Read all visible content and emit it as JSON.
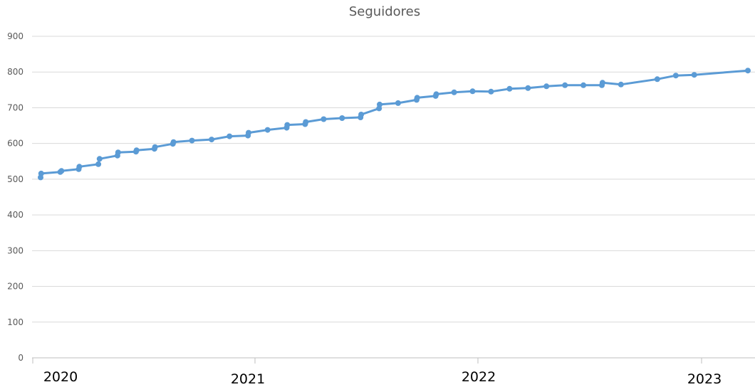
{
  "chart_data": {
    "type": "line",
    "title": "Seguidores",
    "xlabel": "",
    "ylabel": "",
    "ylim": [
      0,
      900
    ],
    "y_ticks": [
      "0",
      "100",
      "200",
      "300",
      "400",
      "500",
      "600",
      "700",
      "800",
      "900"
    ],
    "x_ticks": [
      "2020",
      "2021",
      "2022",
      "2023"
    ],
    "grid": true,
    "legend": "none",
    "colors": {
      "series": "#5b9bd5",
      "grid": "#d9d9d9",
      "text": "#595959"
    },
    "series": [
      {
        "values": [
          [
            "2019-12-30",
            505
          ],
          [
            "2019-12-31",
            516
          ],
          [
            "2020-02-01",
            520
          ],
          [
            "2020-02-03",
            523
          ],
          [
            "2020-03-03",
            528
          ],
          [
            "2020-03-04",
            535
          ],
          [
            "2020-04-05",
            542
          ],
          [
            "2020-04-07",
            557
          ],
          [
            "2020-05-07",
            566
          ],
          [
            "2020-05-08",
            575
          ],
          [
            "2020-06-07",
            577
          ],
          [
            "2020-06-08",
            581
          ],
          [
            "2020-07-08",
            585
          ],
          [
            "2020-07-09",
            590
          ],
          [
            "2020-08-08",
            599
          ],
          [
            "2020-08-09",
            604
          ],
          [
            "2020-09-09",
            608
          ],
          [
            "2020-10-12",
            611
          ],
          [
            "2020-11-11",
            620
          ],
          [
            "2020-12-12",
            622
          ],
          [
            "2020-12-13",
            630
          ],
          [
            "2021-01-14",
            638
          ],
          [
            "2021-02-15",
            644
          ],
          [
            "2021-02-16",
            652
          ],
          [
            "2021-03-18",
            654
          ],
          [
            "2021-03-19",
            660
          ],
          [
            "2021-04-18",
            668
          ],
          [
            "2021-05-19",
            671
          ],
          [
            "2021-06-19",
            673
          ],
          [
            "2021-06-20",
            681
          ],
          [
            "2021-07-20",
            698
          ],
          [
            "2021-07-21",
            709
          ],
          [
            "2021-08-21",
            713
          ],
          [
            "2021-09-21",
            722
          ],
          [
            "2021-09-22",
            728
          ],
          [
            "2021-10-23",
            733
          ],
          [
            "2021-10-24",
            738
          ],
          [
            "2021-11-23",
            743
          ],
          [
            "2021-12-24",
            746
          ],
          [
            "2022-01-24",
            745
          ],
          [
            "2022-02-24",
            753
          ],
          [
            "2022-03-27",
            755
          ],
          [
            "2022-04-27",
            760
          ],
          [
            "2022-05-28",
            763
          ],
          [
            "2022-06-28",
            763
          ],
          [
            "2022-07-29",
            763
          ],
          [
            "2022-07-30",
            770
          ],
          [
            "2022-08-30",
            765
          ],
          [
            "2022-10-30",
            780
          ],
          [
            "2022-11-30",
            790
          ],
          [
            "2022-12-31",
            792
          ],
          [
            "2023-03-31",
            804
          ]
        ]
      }
    ]
  }
}
